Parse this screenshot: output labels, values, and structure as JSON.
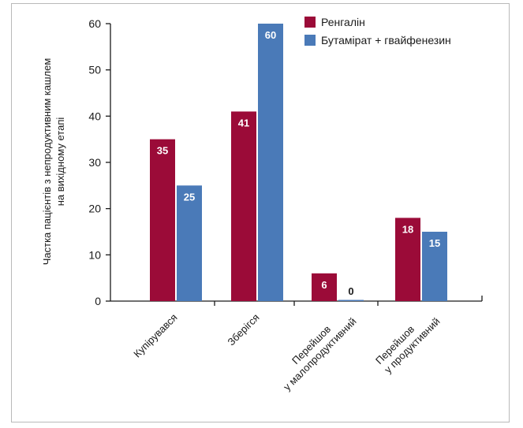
{
  "chart_data": {
    "type": "bar",
    "categories": [
      [
        "Купірувався"
      ],
      [
        "Зберігся"
      ],
      [
        "Перейшов",
        "у малопродуктивний"
      ],
      [
        "Перейшов",
        "у продуктивний"
      ]
    ],
    "series": [
      {
        "name": "Ренгалін",
        "color": "#9b0b38",
        "values": [
          35,
          41,
          6,
          18
        ]
      },
      {
        "name": "Бутамірат + гвайфенезин",
        "color": "#4a7ab8",
        "values": [
          25,
          60,
          0,
          15
        ]
      }
    ],
    "ylabel": [
      "Частка пацієнтів з непродуктивним кашлем",
      "на вихідному етапі"
    ],
    "ylim": [
      0,
      60
    ],
    "yticks": [
      0,
      10,
      20,
      30,
      40,
      50,
      60
    ],
    "legend_position": "top-right",
    "grid": false
  }
}
